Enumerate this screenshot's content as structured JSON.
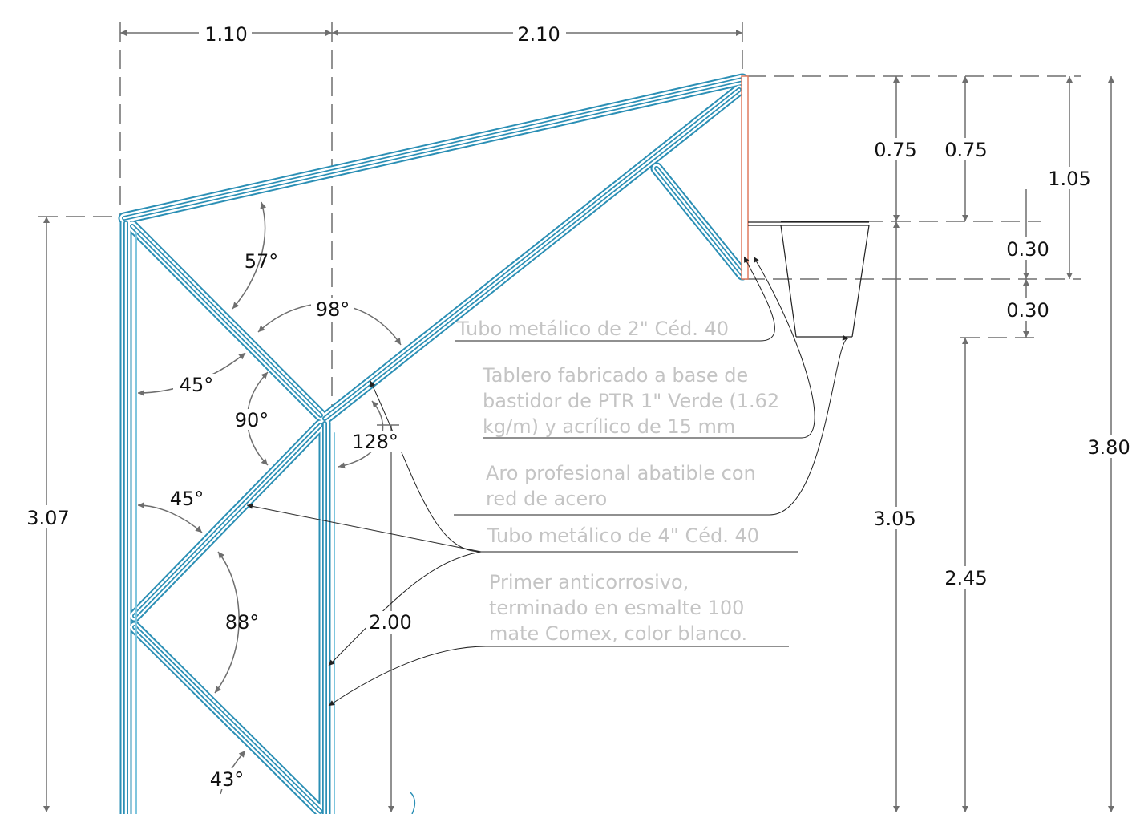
{
  "dimensions": {
    "top_left": "1.10",
    "top_right": "2.10",
    "left_height": "3.07",
    "rim_height": "3.05",
    "board_to_hoop": "0.75",
    "board_to_hoop_inner": "0.75",
    "board_total": "1.05",
    "board_lower": "0.30",
    "net_depth": "0.30",
    "net_bottom_height": "2.45",
    "total_height": "3.80",
    "post_height": "2.00"
  },
  "angles": {
    "a57": "57°",
    "a98": "98°",
    "a45_upper": "45°",
    "a90": "90°",
    "a128": "128°",
    "a45_lower": "45°",
    "a88": "88°",
    "a43": "43°"
  },
  "notes": {
    "tube_2": "Tubo metálico de 2\" Céd. 40",
    "board_1": "Tablero fabricado a base de",
    "board_2": "bastidor de PTR 1\" Verde (1.62",
    "board_3": "kg/m)  y acrílico de 15 mm",
    "hoop_1": "Aro profesional abatible con",
    "hoop_2": "red de acero",
    "tube_4": "Tubo metálico de 4\" Céd. 40",
    "primer_1": "Primer anticorrosivo,",
    "primer_2": "terminado en esmalte 100",
    "primer_3": "mate Comex, color blanco."
  },
  "colors": {
    "structure": "#2b8fb5",
    "structure_inner": "#7fc6de",
    "board": "#e07a5f",
    "dimension_lines": "#6e6e6e",
    "note_text": "#c4c4c4"
  }
}
